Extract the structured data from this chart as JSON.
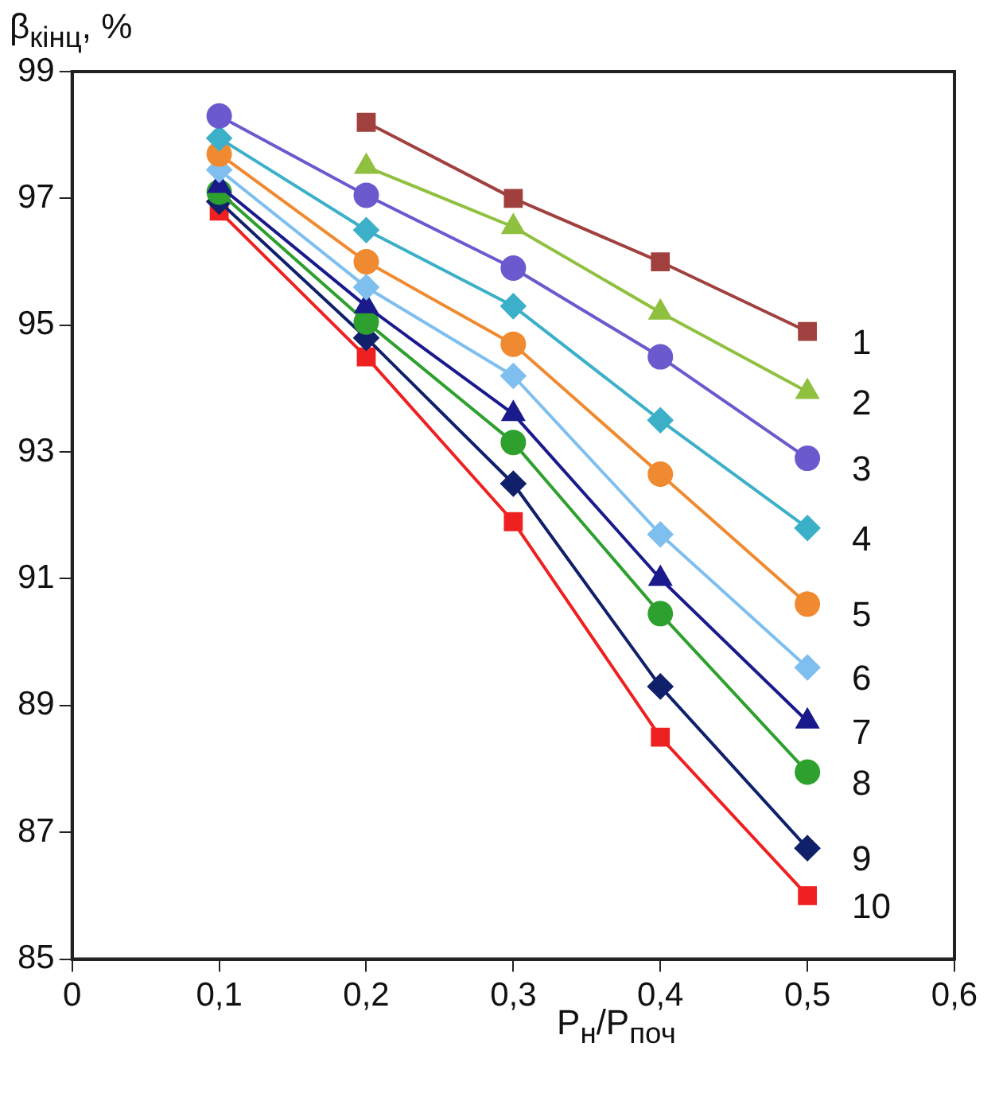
{
  "chart_data": {
    "type": "line",
    "xlabel": "P$_{н}$/P$_{поч}$",
    "ylabel": "β$_{кінц}$, %",
    "xlim": [
      0,
      0.6
    ],
    "xticks": [
      0,
      {
        "value": 0.1,
        "label": "0,1"
      },
      {
        "value": 0.2,
        "label": "0,2"
      },
      {
        "value": 0.3,
        "label": "0,3"
      },
      {
        "value": 0.4,
        "label": "0,4"
      },
      {
        "value": 0.5,
        "label": "0,5"
      },
      {
        "value": 0.6,
        "label": "0,6"
      }
    ],
    "ylim": [
      85,
      99
    ],
    "yticks": [
      85,
      87,
      89,
      91,
      93,
      95,
      97,
      99
    ],
    "grid": false,
    "legend": false,
    "line_style": "solid",
    "series": [
      {
        "name": "1",
        "color": "#a0403f",
        "marker": "square",
        "x": [
          0.2,
          0.3,
          0.4,
          0.5
        ],
        "values": [
          98.2,
          97.0,
          96.0,
          94.9
        ]
      },
      {
        "name": "2",
        "color": "#8fc03f",
        "marker": "triangle",
        "x": [
          0.2,
          0.3,
          0.4,
          0.5
        ],
        "values": [
          97.5,
          96.55,
          95.2,
          93.95
        ]
      },
      {
        "name": "3",
        "color": "#6a5acd",
        "marker": "circle",
        "x": [
          0.1,
          0.2,
          0.3,
          0.4,
          0.5
        ],
        "values": [
          98.3,
          97.05,
          95.9,
          94.5,
          92.9
        ]
      },
      {
        "name": "4",
        "color": "#3bb0c8",
        "marker": "diamond",
        "x": [
          0.1,
          0.2,
          0.3,
          0.4,
          0.5
        ],
        "values": [
          97.95,
          96.5,
          95.3,
          93.5,
          91.8
        ]
      },
      {
        "name": "5",
        "color": "#f08a30",
        "marker": "circle",
        "x": [
          0.1,
          0.2,
          0.3,
          0.4,
          0.5
        ],
        "values": [
          97.7,
          96.0,
          94.7,
          92.65,
          90.6
        ]
      },
      {
        "name": "6",
        "color": "#7fbfef",
        "marker": "diamond",
        "x": [
          0.1,
          0.2,
          0.3,
          0.4,
          0.5
        ],
        "values": [
          97.45,
          95.6,
          94.2,
          91.7,
          89.6
        ]
      },
      {
        "name": "7",
        "color": "#1a1a8c",
        "marker": "triangle",
        "x": [
          0.1,
          0.2,
          0.3,
          0.4,
          0.5
        ],
        "values": [
          97.2,
          95.3,
          93.6,
          91.0,
          88.75
        ]
      },
      {
        "name": "8",
        "color": "#2ea02e",
        "marker": "circle",
        "x": [
          0.1,
          0.2,
          0.3,
          0.4,
          0.5
        ],
        "values": [
          97.1,
          95.05,
          93.15,
          90.45,
          87.95
        ]
      },
      {
        "name": "9",
        "color": "#10206a",
        "marker": "diamond",
        "x": [
          0.1,
          0.2,
          0.3,
          0.4,
          0.5
        ],
        "values": [
          96.95,
          94.8,
          92.5,
          89.3,
          86.75
        ]
      },
      {
        "name": "10",
        "color": "#ee2020",
        "marker": "square",
        "x": [
          0.1,
          0.2,
          0.3,
          0.4,
          0.5
        ],
        "values": [
          96.8,
          94.5,
          91.9,
          88.5,
          86.0
        ]
      }
    ]
  }
}
